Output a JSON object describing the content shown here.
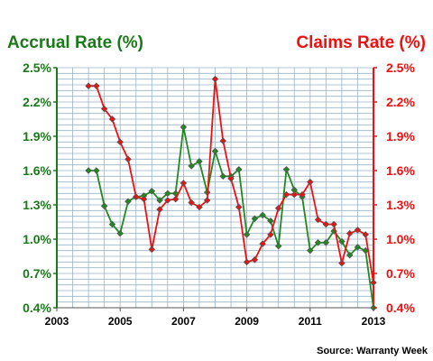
{
  "chart_data": {
    "type": "line",
    "left_title": "Accrual Rate (%)",
    "right_title": "Claims Rate (%)",
    "source": "Source: Warranty Week",
    "grid": true,
    "xlim": [
      2003,
      2013
    ],
    "ylim": [
      0.4,
      2.5
    ],
    "x_ticks": [
      "2003",
      "2005",
      "2007",
      "2009",
      "2011",
      "2013"
    ],
    "y_ticks_left": [
      "2.5%",
      "2.2%",
      "1.9%",
      "1.6%",
      "1.3%",
      "1.0%",
      "0.7%",
      "0.4%"
    ],
    "y_ticks_right": [
      "2.5%",
      "2.2%",
      "1.9%",
      "1.6%",
      "1.3%",
      "1.0%",
      "0.7%",
      "0.4%"
    ],
    "colors": {
      "accrual": "#1f8a1f",
      "claims": "#ee1111",
      "left_axis": "#1a7a1a",
      "right_axis": "#ee1111",
      "grid": "#9ab3c8",
      "marker": "#555555"
    },
    "series": [
      {
        "name": "Accrual Rate (%)",
        "axis": "left",
        "x": [
          2004.0,
          2004.25,
          2004.5,
          2004.75,
          2005.0,
          2005.25,
          2005.5,
          2005.75,
          2006.0,
          2006.25,
          2006.5,
          2006.75,
          2007.0,
          2007.25,
          2007.5,
          2007.75,
          2008.0,
          2008.25,
          2008.5,
          2008.75,
          2009.0,
          2009.25,
          2009.5,
          2009.75,
          2010.0,
          2010.25,
          2010.5,
          2010.75,
          2011.0,
          2011.25,
          2011.5,
          2011.75,
          2012.0,
          2012.25,
          2012.5,
          2012.75,
          2013.0
        ],
        "values": [
          1.6,
          1.6,
          1.29,
          1.13,
          1.05,
          1.33,
          1.37,
          1.38,
          1.42,
          1.34,
          1.4,
          1.4,
          1.98,
          1.64,
          1.68,
          1.41,
          1.77,
          1.55,
          1.55,
          1.61,
          1.04,
          1.18,
          1.21,
          1.16,
          0.94,
          1.61,
          1.43,
          1.37,
          0.9,
          0.97,
          0.97,
          1.07,
          0.98,
          0.86,
          0.93,
          0.9,
          0.4
        ]
      },
      {
        "name": "Claims Rate (%)",
        "axis": "right",
        "x": [
          2004.0,
          2004.25,
          2004.5,
          2004.75,
          2005.0,
          2005.25,
          2005.5,
          2005.75,
          2006.0,
          2006.25,
          2006.5,
          2006.75,
          2007.0,
          2007.25,
          2007.5,
          2007.75,
          2008.0,
          2008.25,
          2008.5,
          2008.75,
          2009.0,
          2009.25,
          2009.5,
          2009.75,
          2010.0,
          2010.25,
          2010.5,
          2010.75,
          2011.0,
          2011.25,
          2011.5,
          2011.75,
          2012.0,
          2012.25,
          2012.5,
          2012.75,
          2013.0
        ],
        "values": [
          2.34,
          2.34,
          2.14,
          2.05,
          1.85,
          1.7,
          1.37,
          1.35,
          0.91,
          1.26,
          1.34,
          1.35,
          1.49,
          1.32,
          1.28,
          1.34,
          2.4,
          1.86,
          1.53,
          1.28,
          0.8,
          0.82,
          0.96,
          1.04,
          1.27,
          1.39,
          1.39,
          1.39,
          1.5,
          1.17,
          1.13,
          1.13,
          0.79,
          1.05,
          1.08,
          1.04,
          0.62
        ]
      }
    ]
  }
}
